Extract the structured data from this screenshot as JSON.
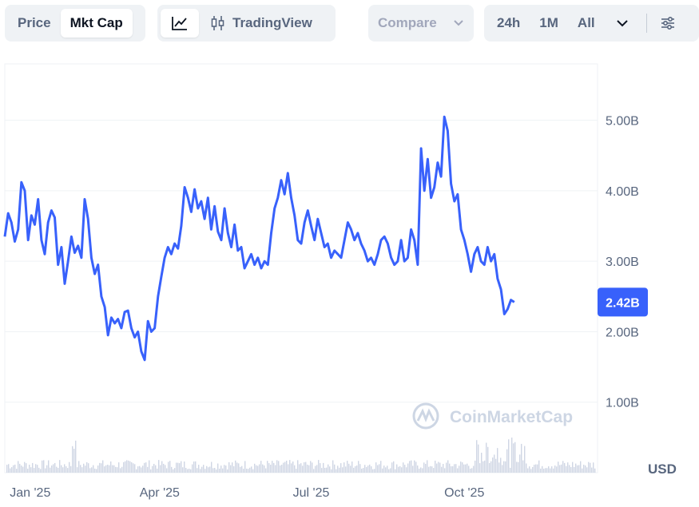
{
  "toolbar": {
    "price_label": "Price",
    "mktcap_label": "Mkt Cap",
    "tradingview_label": "TradingView",
    "compare_label": "Compare",
    "range_24h": "24h",
    "range_1m": "1M",
    "range_all": "All"
  },
  "colors": {
    "line": "#3861fb",
    "badge": "#3861fb",
    "grid": "#eff2f5",
    "volume": "#cfd6e4"
  },
  "watermark": "CoinMarketCap",
  "chart_data": {
    "type": "line",
    "title": "",
    "xlabel": "",
    "ylabel": "",
    "currency": "USD",
    "ylim": [
      0,
      5.8
    ],
    "y_ticks": [
      1,
      2,
      3,
      4,
      5
    ],
    "y_tick_labels": [
      "1.00B",
      "2.00B",
      "3.00B",
      "4.00B",
      "5.00B"
    ],
    "x_ticks": [
      "2025-01-01",
      "2025-04-01",
      "2025-07-01",
      "2025-10-01"
    ],
    "x_tick_labels": [
      "Jan '25",
      "Apr '25",
      "Jul '25",
      "Oct '25"
    ],
    "x_start": "2024-12-29",
    "x_end": "2025-12-20",
    "current_value": 2.42,
    "current_label": "2.42B",
    "series": [
      {
        "unit": "B USD",
        "points": [
          [
            "2024-12-29",
            3.35
          ],
          [
            "2024-12-31",
            3.68
          ],
          [
            "2025-01-02",
            3.55
          ],
          [
            "2025-01-04",
            3.28
          ],
          [
            "2025-01-06",
            3.45
          ],
          [
            "2025-01-08",
            4.12
          ],
          [
            "2025-01-10",
            4.0
          ],
          [
            "2025-01-12",
            3.3
          ],
          [
            "2025-01-14",
            3.65
          ],
          [
            "2025-01-16",
            3.52
          ],
          [
            "2025-01-18",
            3.88
          ],
          [
            "2025-01-20",
            3.3
          ],
          [
            "2025-01-22",
            3.1
          ],
          [
            "2025-01-24",
            3.55
          ],
          [
            "2025-01-26",
            3.72
          ],
          [
            "2025-01-28",
            3.62
          ],
          [
            "2025-01-30",
            2.95
          ],
          [
            "2025-02-01",
            3.2
          ],
          [
            "2025-02-03",
            2.68
          ],
          [
            "2025-02-05",
            3.0
          ],
          [
            "2025-02-07",
            3.35
          ],
          [
            "2025-02-09",
            3.12
          ],
          [
            "2025-02-11",
            3.22
          ],
          [
            "2025-02-13",
            3.05
          ],
          [
            "2025-02-15",
            3.88
          ],
          [
            "2025-02-17",
            3.6
          ],
          [
            "2025-02-19",
            3.05
          ],
          [
            "2025-02-21",
            2.82
          ],
          [
            "2025-02-23",
            2.95
          ],
          [
            "2025-02-25",
            2.5
          ],
          [
            "2025-02-27",
            2.35
          ],
          [
            "2025-03-01",
            1.95
          ],
          [
            "2025-03-03",
            2.2
          ],
          [
            "2025-03-05",
            2.12
          ],
          [
            "2025-03-07",
            2.18
          ],
          [
            "2025-03-09",
            2.05
          ],
          [
            "2025-03-11",
            2.28
          ],
          [
            "2025-03-13",
            2.3
          ],
          [
            "2025-03-15",
            2.05
          ],
          [
            "2025-03-17",
            1.92
          ],
          [
            "2025-03-19",
            2.0
          ],
          [
            "2025-03-21",
            1.72
          ],
          [
            "2025-03-23",
            1.6
          ],
          [
            "2025-03-25",
            2.15
          ],
          [
            "2025-03-27",
            2.0
          ],
          [
            "2025-03-29",
            2.05
          ],
          [
            "2025-03-31",
            2.5
          ],
          [
            "2025-04-02",
            2.78
          ],
          [
            "2025-04-04",
            3.05
          ],
          [
            "2025-04-06",
            3.2
          ],
          [
            "2025-04-08",
            3.1
          ],
          [
            "2025-04-10",
            3.25
          ],
          [
            "2025-04-12",
            3.18
          ],
          [
            "2025-04-14",
            3.5
          ],
          [
            "2025-04-16",
            4.05
          ],
          [
            "2025-04-18",
            3.9
          ],
          [
            "2025-04-20",
            3.7
          ],
          [
            "2025-04-22",
            4.02
          ],
          [
            "2025-04-24",
            3.75
          ],
          [
            "2025-04-26",
            3.85
          ],
          [
            "2025-04-28",
            3.6
          ],
          [
            "2025-04-30",
            3.9
          ],
          [
            "2025-05-02",
            3.45
          ],
          [
            "2025-05-04",
            3.78
          ],
          [
            "2025-05-06",
            3.42
          ],
          [
            "2025-05-08",
            3.3
          ],
          [
            "2025-05-10",
            3.75
          ],
          [
            "2025-05-12",
            3.4
          ],
          [
            "2025-05-14",
            3.2
          ],
          [
            "2025-05-16",
            3.52
          ],
          [
            "2025-05-18",
            3.15
          ],
          [
            "2025-05-20",
            3.2
          ],
          [
            "2025-05-22",
            2.9
          ],
          [
            "2025-05-24",
            3.0
          ],
          [
            "2025-05-26",
            3.1
          ],
          [
            "2025-05-28",
            2.95
          ],
          [
            "2025-05-30",
            3.05
          ],
          [
            "2025-06-01",
            2.9
          ],
          [
            "2025-06-03",
            3.0
          ],
          [
            "2025-06-05",
            2.95
          ],
          [
            "2025-06-07",
            3.4
          ],
          [
            "2025-06-09",
            3.75
          ],
          [
            "2025-06-11",
            3.9
          ],
          [
            "2025-06-13",
            4.15
          ],
          [
            "2025-06-15",
            3.95
          ],
          [
            "2025-06-17",
            4.25
          ],
          [
            "2025-06-19",
            3.9
          ],
          [
            "2025-06-21",
            3.65
          ],
          [
            "2025-06-23",
            3.3
          ],
          [
            "2025-06-25",
            3.25
          ],
          [
            "2025-06-27",
            3.55
          ],
          [
            "2025-06-29",
            3.72
          ],
          [
            "2025-07-01",
            3.5
          ],
          [
            "2025-07-03",
            3.3
          ],
          [
            "2025-07-05",
            3.6
          ],
          [
            "2025-07-07",
            3.4
          ],
          [
            "2025-07-09",
            3.2
          ],
          [
            "2025-07-11",
            3.25
          ],
          [
            "2025-07-13",
            3.05
          ],
          [
            "2025-07-15",
            3.15
          ],
          [
            "2025-07-17",
            3.1
          ],
          [
            "2025-07-19",
            3.05
          ],
          [
            "2025-07-21",
            3.3
          ],
          [
            "2025-07-23",
            3.55
          ],
          [
            "2025-07-25",
            3.45
          ],
          [
            "2025-07-27",
            3.3
          ],
          [
            "2025-07-29",
            3.4
          ],
          [
            "2025-07-31",
            3.25
          ],
          [
            "2025-08-02",
            3.15
          ],
          [
            "2025-08-04",
            3.0
          ],
          [
            "2025-08-06",
            3.05
          ],
          [
            "2025-08-08",
            2.95
          ],
          [
            "2025-08-10",
            3.1
          ],
          [
            "2025-08-12",
            3.3
          ],
          [
            "2025-08-14",
            3.35
          ],
          [
            "2025-08-16",
            3.25
          ],
          [
            "2025-08-18",
            3.05
          ],
          [
            "2025-08-20",
            2.95
          ],
          [
            "2025-08-22",
            3.0
          ],
          [
            "2025-08-24",
            3.3
          ],
          [
            "2025-08-26",
            3.0
          ],
          [
            "2025-08-28",
            3.05
          ],
          [
            "2025-08-30",
            3.45
          ],
          [
            "2025-09-01",
            3.3
          ],
          [
            "2025-09-03",
            2.95
          ],
          [
            "2025-09-05",
            4.6
          ],
          [
            "2025-09-07",
            4.0
          ],
          [
            "2025-09-09",
            4.45
          ],
          [
            "2025-09-11",
            3.9
          ],
          [
            "2025-09-13",
            4.05
          ],
          [
            "2025-09-15",
            4.4
          ],
          [
            "2025-09-17",
            4.2
          ],
          [
            "2025-09-19",
            5.05
          ],
          [
            "2025-09-21",
            4.85
          ],
          [
            "2025-09-23",
            4.1
          ],
          [
            "2025-09-25",
            3.85
          ],
          [
            "2025-09-27",
            3.95
          ],
          [
            "2025-09-29",
            3.45
          ],
          [
            "2025-10-01",
            3.3
          ],
          [
            "2025-10-03",
            3.1
          ],
          [
            "2025-10-05",
            2.85
          ],
          [
            "2025-10-07",
            3.1
          ],
          [
            "2025-10-09",
            3.2
          ],
          [
            "2025-10-11",
            3.0
          ],
          [
            "2025-10-13",
            2.95
          ],
          [
            "2025-10-15",
            3.2
          ],
          [
            "2025-10-17",
            3.0
          ],
          [
            "2025-10-19",
            3.1
          ],
          [
            "2025-10-21",
            2.75
          ],
          [
            "2025-10-23",
            2.6
          ],
          [
            "2025-10-25",
            2.25
          ],
          [
            "2025-10-27",
            2.32
          ],
          [
            "2025-10-29",
            2.45
          ],
          [
            "2025-10-31",
            2.42
          ]
        ]
      }
    ]
  }
}
